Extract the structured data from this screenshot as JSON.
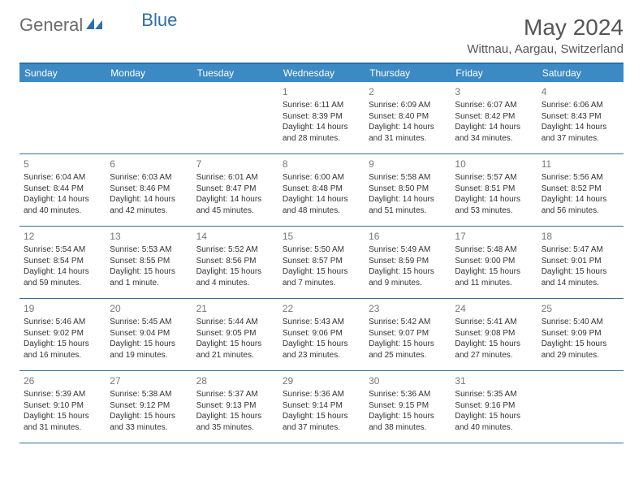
{
  "logo": {
    "general": "General",
    "blue": "Blue"
  },
  "title": "May 2024",
  "location": "Wittnau, Aargau, Switzerland",
  "colors": {
    "header_bg": "#3b8ac4",
    "border": "#2f6fa8",
    "text": "#333333",
    "muted": "#777777"
  },
  "day_names": [
    "Sunday",
    "Monday",
    "Tuesday",
    "Wednesday",
    "Thursday",
    "Friday",
    "Saturday"
  ],
  "weeks": [
    [
      null,
      null,
      null,
      {
        "n": "1",
        "sr": "Sunrise: 6:11 AM",
        "ss": "Sunset: 8:39 PM",
        "d1": "Daylight: 14 hours",
        "d2": "and 28 minutes."
      },
      {
        "n": "2",
        "sr": "Sunrise: 6:09 AM",
        "ss": "Sunset: 8:40 PM",
        "d1": "Daylight: 14 hours",
        "d2": "and 31 minutes."
      },
      {
        "n": "3",
        "sr": "Sunrise: 6:07 AM",
        "ss": "Sunset: 8:42 PM",
        "d1": "Daylight: 14 hours",
        "d2": "and 34 minutes."
      },
      {
        "n": "4",
        "sr": "Sunrise: 6:06 AM",
        "ss": "Sunset: 8:43 PM",
        "d1": "Daylight: 14 hours",
        "d2": "and 37 minutes."
      }
    ],
    [
      {
        "n": "5",
        "sr": "Sunrise: 6:04 AM",
        "ss": "Sunset: 8:44 PM",
        "d1": "Daylight: 14 hours",
        "d2": "and 40 minutes."
      },
      {
        "n": "6",
        "sr": "Sunrise: 6:03 AM",
        "ss": "Sunset: 8:46 PM",
        "d1": "Daylight: 14 hours",
        "d2": "and 42 minutes."
      },
      {
        "n": "7",
        "sr": "Sunrise: 6:01 AM",
        "ss": "Sunset: 8:47 PM",
        "d1": "Daylight: 14 hours",
        "d2": "and 45 minutes."
      },
      {
        "n": "8",
        "sr": "Sunrise: 6:00 AM",
        "ss": "Sunset: 8:48 PM",
        "d1": "Daylight: 14 hours",
        "d2": "and 48 minutes."
      },
      {
        "n": "9",
        "sr": "Sunrise: 5:58 AM",
        "ss": "Sunset: 8:50 PM",
        "d1": "Daylight: 14 hours",
        "d2": "and 51 minutes."
      },
      {
        "n": "10",
        "sr": "Sunrise: 5:57 AM",
        "ss": "Sunset: 8:51 PM",
        "d1": "Daylight: 14 hours",
        "d2": "and 53 minutes."
      },
      {
        "n": "11",
        "sr": "Sunrise: 5:56 AM",
        "ss": "Sunset: 8:52 PM",
        "d1": "Daylight: 14 hours",
        "d2": "and 56 minutes."
      }
    ],
    [
      {
        "n": "12",
        "sr": "Sunrise: 5:54 AM",
        "ss": "Sunset: 8:54 PM",
        "d1": "Daylight: 14 hours",
        "d2": "and 59 minutes."
      },
      {
        "n": "13",
        "sr": "Sunrise: 5:53 AM",
        "ss": "Sunset: 8:55 PM",
        "d1": "Daylight: 15 hours",
        "d2": "and 1 minute."
      },
      {
        "n": "14",
        "sr": "Sunrise: 5:52 AM",
        "ss": "Sunset: 8:56 PM",
        "d1": "Daylight: 15 hours",
        "d2": "and 4 minutes."
      },
      {
        "n": "15",
        "sr": "Sunrise: 5:50 AM",
        "ss": "Sunset: 8:57 PM",
        "d1": "Daylight: 15 hours",
        "d2": "and 7 minutes."
      },
      {
        "n": "16",
        "sr": "Sunrise: 5:49 AM",
        "ss": "Sunset: 8:59 PM",
        "d1": "Daylight: 15 hours",
        "d2": "and 9 minutes."
      },
      {
        "n": "17",
        "sr": "Sunrise: 5:48 AM",
        "ss": "Sunset: 9:00 PM",
        "d1": "Daylight: 15 hours",
        "d2": "and 11 minutes."
      },
      {
        "n": "18",
        "sr": "Sunrise: 5:47 AM",
        "ss": "Sunset: 9:01 PM",
        "d1": "Daylight: 15 hours",
        "d2": "and 14 minutes."
      }
    ],
    [
      {
        "n": "19",
        "sr": "Sunrise: 5:46 AM",
        "ss": "Sunset: 9:02 PM",
        "d1": "Daylight: 15 hours",
        "d2": "and 16 minutes."
      },
      {
        "n": "20",
        "sr": "Sunrise: 5:45 AM",
        "ss": "Sunset: 9:04 PM",
        "d1": "Daylight: 15 hours",
        "d2": "and 19 minutes."
      },
      {
        "n": "21",
        "sr": "Sunrise: 5:44 AM",
        "ss": "Sunset: 9:05 PM",
        "d1": "Daylight: 15 hours",
        "d2": "and 21 minutes."
      },
      {
        "n": "22",
        "sr": "Sunrise: 5:43 AM",
        "ss": "Sunset: 9:06 PM",
        "d1": "Daylight: 15 hours",
        "d2": "and 23 minutes."
      },
      {
        "n": "23",
        "sr": "Sunrise: 5:42 AM",
        "ss": "Sunset: 9:07 PM",
        "d1": "Daylight: 15 hours",
        "d2": "and 25 minutes."
      },
      {
        "n": "24",
        "sr": "Sunrise: 5:41 AM",
        "ss": "Sunset: 9:08 PM",
        "d1": "Daylight: 15 hours",
        "d2": "and 27 minutes."
      },
      {
        "n": "25",
        "sr": "Sunrise: 5:40 AM",
        "ss": "Sunset: 9:09 PM",
        "d1": "Daylight: 15 hours",
        "d2": "and 29 minutes."
      }
    ],
    [
      {
        "n": "26",
        "sr": "Sunrise: 5:39 AM",
        "ss": "Sunset: 9:10 PM",
        "d1": "Daylight: 15 hours",
        "d2": "and 31 minutes."
      },
      {
        "n": "27",
        "sr": "Sunrise: 5:38 AM",
        "ss": "Sunset: 9:12 PM",
        "d1": "Daylight: 15 hours",
        "d2": "and 33 minutes."
      },
      {
        "n": "28",
        "sr": "Sunrise: 5:37 AM",
        "ss": "Sunset: 9:13 PM",
        "d1": "Daylight: 15 hours",
        "d2": "and 35 minutes."
      },
      {
        "n": "29",
        "sr": "Sunrise: 5:36 AM",
        "ss": "Sunset: 9:14 PM",
        "d1": "Daylight: 15 hours",
        "d2": "and 37 minutes."
      },
      {
        "n": "30",
        "sr": "Sunrise: 5:36 AM",
        "ss": "Sunset: 9:15 PM",
        "d1": "Daylight: 15 hours",
        "d2": "and 38 minutes."
      },
      {
        "n": "31",
        "sr": "Sunrise: 5:35 AM",
        "ss": "Sunset: 9:16 PM",
        "d1": "Daylight: 15 hours",
        "d2": "and 40 minutes."
      },
      null
    ]
  ]
}
